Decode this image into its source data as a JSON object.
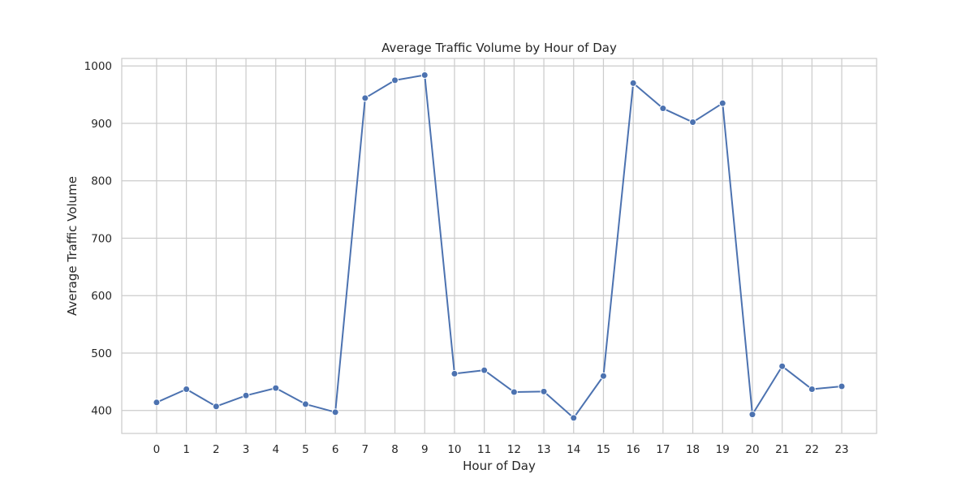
{
  "chart_data": {
    "type": "line",
    "title": "Average Traffic Volume by Hour of Day",
    "xlabel": "Hour of Day",
    "ylabel": "Average Traffic Volume",
    "x": [
      0,
      1,
      2,
      3,
      4,
      5,
      6,
      7,
      8,
      9,
      10,
      11,
      12,
      13,
      14,
      15,
      16,
      17,
      18,
      19,
      20,
      21,
      22,
      23
    ],
    "x_tick_labels": [
      "0",
      "1",
      "2",
      "3",
      "4",
      "5",
      "6",
      "7",
      "8",
      "9",
      "10",
      "11",
      "12",
      "13",
      "14",
      "15",
      "16",
      "17",
      "18",
      "19",
      "20",
      "21",
      "22",
      "23"
    ],
    "series": [
      {
        "values": [
          414,
          437,
          407,
          426,
          439,
          411,
          397,
          944,
          975,
          984,
          464,
          470,
          432,
          433,
          387,
          460,
          970,
          926,
          902,
          935,
          393,
          477,
          437,
          442
        ]
      }
    ],
    "xlim": [
      -1.17,
      24.17
    ],
    "ylim": [
      360,
      1013
    ],
    "y_ticks": [
      400,
      500,
      600,
      700,
      800,
      900,
      1000
    ],
    "grid": true,
    "colors": {
      "line": "#4c72b0",
      "grid": "#cccccc",
      "spine": "#cccccc",
      "text": "#262626"
    }
  }
}
